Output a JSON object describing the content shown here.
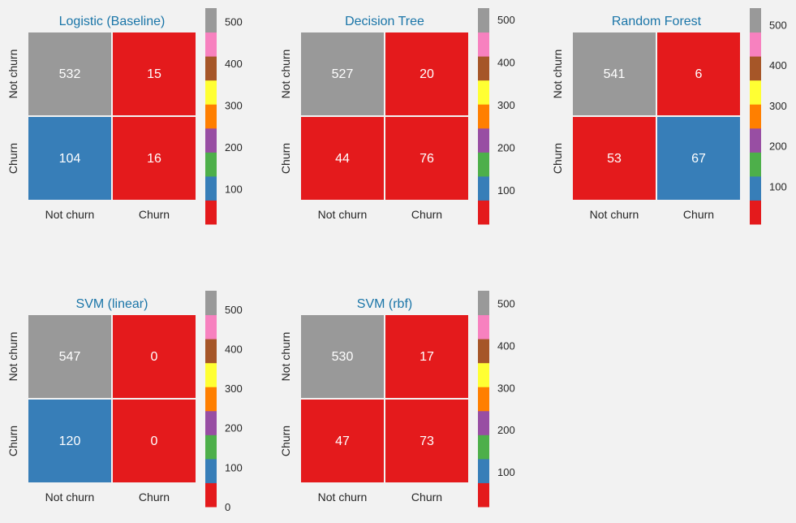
{
  "palette": [
    "#e41a1c",
    "#377eb8",
    "#4daf4a",
    "#984ea3",
    "#ff7f00",
    "#ffff33",
    "#a65628",
    "#f781bf",
    "#999999"
  ],
  "background": "#f2f2f2",
  "title_color": "#1a75a8",
  "chart_data": [
    {
      "type": "heatmap",
      "title": "Logistic (Baseline)",
      "x_labels": [
        "Not churn",
        "Churn"
      ],
      "y_labels": [
        "Not churn",
        "Churn"
      ],
      "values": [
        [
          532,
          15
        ],
        [
          104,
          16
        ]
      ],
      "colorbar": {
        "range": [
          15,
          532
        ],
        "ticks": [
          100,
          200,
          300,
          400,
          500
        ]
      }
    },
    {
      "type": "heatmap",
      "title": "Decision Tree",
      "x_labels": [
        "Not churn",
        "Churn"
      ],
      "y_labels": [
        "Not churn",
        "Churn"
      ],
      "values": [
        [
          527,
          20
        ],
        [
          44,
          76
        ]
      ],
      "colorbar": {
        "range": [
          20,
          527
        ],
        "ticks": [
          100,
          200,
          300,
          400,
          500
        ]
      }
    },
    {
      "type": "heatmap",
      "title": "Random Forest",
      "x_labels": [
        "Not churn",
        "Churn"
      ],
      "y_labels": [
        "Not churn",
        "Churn"
      ],
      "values": [
        [
          541,
          6
        ],
        [
          53,
          67
        ]
      ],
      "colorbar": {
        "range": [
          6,
          541
        ],
        "ticks": [
          100,
          200,
          300,
          400,
          500
        ]
      }
    },
    {
      "type": "heatmap",
      "title": "SVM (linear)",
      "x_labels": [
        "Not churn",
        "Churn"
      ],
      "y_labels": [
        "Not churn",
        "Churn"
      ],
      "values": [
        [
          547,
          0
        ],
        [
          120,
          0
        ]
      ],
      "colorbar": {
        "range": [
          0,
          547
        ],
        "ticks": [
          0,
          100,
          200,
          300,
          400,
          500
        ]
      }
    },
    {
      "type": "heatmap",
      "title": "SVM (rbf)",
      "x_labels": [
        "Not churn",
        "Churn"
      ],
      "y_labels": [
        "Not churn",
        "Churn"
      ],
      "values": [
        [
          530,
          17
        ],
        [
          47,
          73
        ]
      ],
      "colorbar": {
        "range": [
          17,
          530
        ],
        "ticks": [
          100,
          200,
          300,
          400,
          500
        ]
      }
    }
  ]
}
